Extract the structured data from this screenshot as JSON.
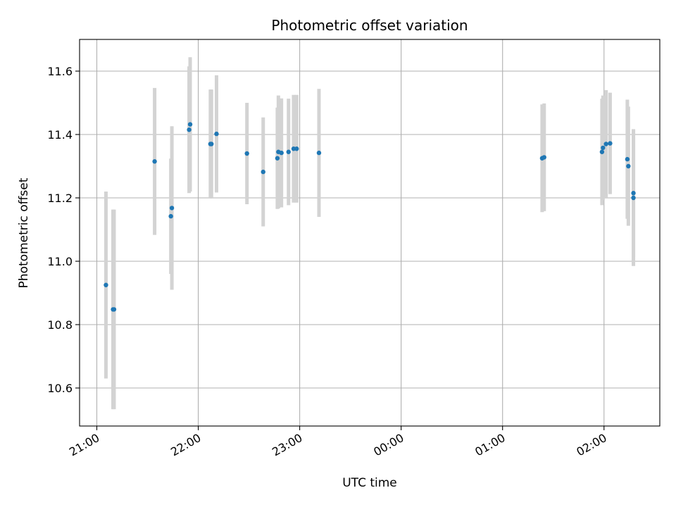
{
  "chart_data": {
    "type": "scatter",
    "title": "Photometric offset variation",
    "xlabel": "UTC time",
    "ylabel": "Photometric offset",
    "x_unit": "hours",
    "x_ticks": [
      {
        "value": 21,
        "label": "21:00"
      },
      {
        "value": 22,
        "label": "22:00"
      },
      {
        "value": 23,
        "label": "23:00"
      },
      {
        "value": 24,
        "label": "00:00"
      },
      {
        "value": 25,
        "label": "01:00"
      },
      {
        "value": 26,
        "label": "02:00"
      }
    ],
    "y_ticks": [
      {
        "value": 10.6,
        "label": "10.6"
      },
      {
        "value": 10.8,
        "label": "10.8"
      },
      {
        "value": 11.0,
        "label": "11.0"
      },
      {
        "value": 11.2,
        "label": "11.2"
      },
      {
        "value": 11.4,
        "label": "11.4"
      },
      {
        "value": 11.6,
        "label": "11.6"
      }
    ],
    "xlim": [
      20.83,
      26.55
    ],
    "ylim": [
      10.48,
      11.7
    ],
    "grid": true,
    "colors": {
      "point": "#1f77b4",
      "errorbar": "#d3d3d3",
      "grid": "#b0b0b0"
    },
    "points": [
      {
        "x": 21.09,
        "y": 10.925,
        "err": 0.295
      },
      {
        "x": 21.16,
        "y": 10.848,
        "err": 0.315
      },
      {
        "x": 21.17,
        "y": 10.848,
        "err": 0.315
      },
      {
        "x": 21.57,
        "y": 11.315,
        "err": 0.232
      },
      {
        "x": 21.73,
        "y": 11.142,
        "err": 0.182
      },
      {
        "x": 21.74,
        "y": 11.168,
        "err": 0.258
      },
      {
        "x": 21.91,
        "y": 11.415,
        "err": 0.2
      },
      {
        "x": 21.92,
        "y": 11.432,
        "err": 0.212
      },
      {
        "x": 22.12,
        "y": 11.37,
        "err": 0.172
      },
      {
        "x": 22.13,
        "y": 11.37,
        "err": 0.172
      },
      {
        "x": 22.18,
        "y": 11.402,
        "err": 0.185
      },
      {
        "x": 22.48,
        "y": 11.34,
        "err": 0.16
      },
      {
        "x": 22.64,
        "y": 11.282,
        "err": 0.172
      },
      {
        "x": 22.78,
        "y": 11.325,
        "err": 0.16
      },
      {
        "x": 22.79,
        "y": 11.345,
        "err": 0.178
      },
      {
        "x": 22.82,
        "y": 11.342,
        "err": 0.172
      },
      {
        "x": 22.89,
        "y": 11.345,
        "err": 0.168
      },
      {
        "x": 22.94,
        "y": 11.355,
        "err": 0.17
      },
      {
        "x": 22.97,
        "y": 11.355,
        "err": 0.17
      },
      {
        "x": 23.19,
        "y": 11.342,
        "err": 0.202
      },
      {
        "x": 25.39,
        "y": 11.325,
        "err": 0.17
      },
      {
        "x": 25.41,
        "y": 11.328,
        "err": 0.17
      },
      {
        "x": 25.98,
        "y": 11.345,
        "err": 0.168
      },
      {
        "x": 25.99,
        "y": 11.358,
        "err": 0.165
      },
      {
        "x": 26.02,
        "y": 11.37,
        "err": 0.17
      },
      {
        "x": 26.06,
        "y": 11.372,
        "err": 0.16
      },
      {
        "x": 26.23,
        "y": 11.322,
        "err": 0.188
      },
      {
        "x": 26.24,
        "y": 11.3,
        "err": 0.188
      },
      {
        "x": 26.29,
        "y": 11.215,
        "err": 0.202
      },
      {
        "x": 26.29,
        "y": 11.2,
        "err": 0.215
      }
    ]
  }
}
